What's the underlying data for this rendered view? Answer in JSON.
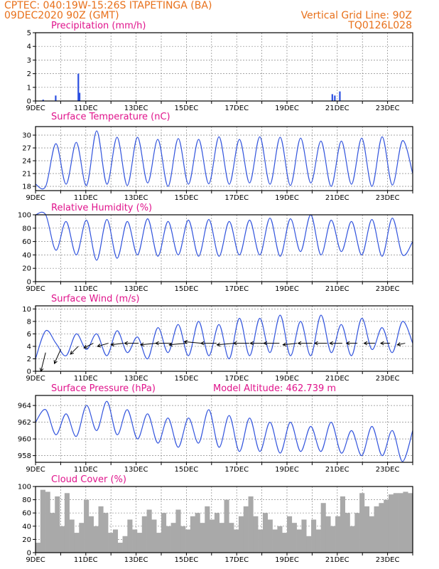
{
  "header": {
    "line1_left": "CPTEC:   040:19W-15:26S   ITAPETINGA (BA)",
    "line2_left": "09DEC2020 90Z (GMT)",
    "line2_right": "Vertical Grid Line: 90Z",
    "line3_right": "TQ0126L028"
  },
  "colors": {
    "line": "#3355dd",
    "bar": "#2b4fe0",
    "cloud": "#a9a9a9",
    "title": "#e0148c",
    "header": "#e8701a"
  },
  "chart_data": [
    {
      "type": "bar",
      "title": "Precipitation (mm/h)",
      "ylim": [
        0,
        5
      ],
      "yticks": [
        0,
        1,
        2,
        3,
        4,
        5
      ],
      "xticks": [
        "9DEC",
        "11DEC",
        "13DEC",
        "15DEC",
        "17DEC",
        "19DEC",
        "21DEC",
        "23DEC"
      ],
      "bars": [
        [
          0.3,
          0.1
        ],
        [
          0.8,
          0.4
        ],
        [
          1.7,
          2.0
        ],
        [
          1.75,
          0.6
        ],
        [
          11.8,
          0.5
        ],
        [
          11.9,
          0.4
        ],
        [
          12.1,
          0.7
        ]
      ]
    },
    {
      "type": "line",
      "title": "Surface Temperature (nC)",
      "ylim": [
        17,
        32
      ],
      "yticks": [
        18,
        21,
        24,
        27,
        30
      ],
      "xticks": [
        "9DEC",
        "11DEC",
        "13DEC",
        "15DEC",
        "17DEC",
        "19DEC",
        "21DEC",
        "23DEC"
      ],
      "series": [
        {
          "values": [
            18.5,
            18,
            28,
            18.5,
            28.3,
            18.2,
            31.0,
            18.5,
            29.5,
            18.2,
            29.5,
            18.8,
            29.0,
            18.0,
            29.2,
            18.5,
            29.0,
            18.6,
            29.6,
            18.5,
            29.0,
            18.8,
            29.6,
            18.5,
            29.5,
            18.2,
            29.3,
            18.8,
            28.6,
            18.0,
            28.6,
            18.5,
            29.3,
            18.0,
            29.6,
            18.3,
            28.7,
            21.0
          ]
        }
      ]
    },
    {
      "type": "line",
      "title": "Relative Humidity (%)",
      "ylim": [
        0,
        100
      ],
      "yticks": [
        0,
        20,
        40,
        60,
        80,
        100
      ],
      "xticks": [
        "9DEC",
        "11DEC",
        "13DEC",
        "15DEC",
        "17DEC",
        "19DEC",
        "21DEC",
        "23DEC"
      ],
      "series": [
        {
          "values": [
            100,
            100,
            47,
            90,
            40,
            92,
            32,
            93,
            35,
            90,
            40,
            94,
            38,
            90,
            40,
            92,
            38,
            93,
            38,
            90,
            40,
            92,
            40,
            95,
            38,
            94,
            45,
            100,
            40,
            92,
            45,
            90,
            40,
            93,
            38,
            95,
            40,
            60
          ]
        }
      ]
    },
    {
      "type": "line",
      "title": "Surface Wind (m/s)",
      "ylim": [
        0,
        10.5
      ],
      "yticks": [
        0,
        2,
        4,
        6,
        8,
        10
      ],
      "xticks": [
        "9DEC",
        "11DEC",
        "13DEC",
        "15DEC",
        "17DEC",
        "19DEC",
        "21DEC",
        "23DEC"
      ],
      "series": [
        {
          "values": [
            2.0,
            6.5,
            4.5,
            2.5,
            6.0,
            3.5,
            6.0,
            2.5,
            6.5,
            3.0,
            5.5,
            2.0,
            7.0,
            3.0,
            7.5,
            2.5,
            8.0,
            2.5,
            7.5,
            2.0,
            8.5,
            2.5,
            8.5,
            3.0,
            9.0,
            2.5,
            8.0,
            2.5,
            9.0,
            3.0,
            7.5,
            2.5,
            8.5,
            3.5,
            7.0,
            3.0,
            8.0,
            4.5
          ]
        }
      ],
      "arrows": [
        [
          0.4,
          3.0,
          -0.3,
          -1.2
        ],
        [
          1.0,
          3.5,
          -0.4,
          -0.9
        ],
        [
          1.7,
          4.0,
          -0.5,
          -0.5
        ],
        [
          2.3,
          4.5,
          -0.6,
          -0.3
        ],
        [
          2.9,
          4.5,
          -0.7,
          -0.2
        ],
        [
          3.5,
          4.5,
          -0.8,
          -0.1
        ],
        [
          4.1,
          4.5,
          -0.9,
          0.0
        ],
        [
          4.8,
          4.5,
          -1.0,
          -0.1
        ],
        [
          5.4,
          4.5,
          -1.0,
          0.0
        ],
        [
          6.0,
          4.5,
          -1.1,
          -0.1
        ],
        [
          6.6,
          4.5,
          -1.1,
          0.1
        ],
        [
          7.2,
          4.5,
          -1.0,
          0.0
        ],
        [
          7.9,
          4.5,
          -1.1,
          -0.1
        ],
        [
          8.5,
          4.5,
          -1.0,
          0.0
        ],
        [
          9.1,
          4.5,
          -0.9,
          0.0
        ],
        [
          9.7,
          4.5,
          -1.0,
          0.0
        ],
        [
          10.4,
          4.5,
          -0.9,
          -0.1
        ],
        [
          11.0,
          4.5,
          -0.9,
          0.0
        ],
        [
          11.6,
          4.5,
          -0.8,
          0.0
        ],
        [
          12.2,
          4.5,
          -0.8,
          0.0
        ],
        [
          12.8,
          4.5,
          -0.7,
          0.0
        ],
        [
          13.5,
          4.5,
          -0.7,
          0.0
        ],
        [
          14.1,
          4.5,
          -0.6,
          0.0
        ],
        [
          14.7,
          4.5,
          -0.5,
          -0.1
        ]
      ]
    },
    {
      "type": "line",
      "title": "Surface Pressure (hPa)",
      "subtitle": "Model Altitude: 462.739 m",
      "ylim": [
        957.2,
        965.2
      ],
      "yticks": [
        958,
        960,
        962,
        964
      ],
      "xticks": [
        "9DEC",
        "11DEC",
        "13DEC",
        "15DEC",
        "17DEC",
        "19DEC",
        "21DEC",
        "23DEC"
      ],
      "series": [
        {
          "values": [
            962.0,
            963.5,
            960.5,
            963.0,
            960.3,
            964.0,
            961.0,
            964.5,
            960.5,
            963.5,
            960.0,
            963.0,
            959.5,
            962.5,
            959.0,
            962.5,
            959.5,
            963.5,
            959.0,
            962.8,
            958.5,
            962.5,
            958.5,
            962.0,
            958.3,
            962.0,
            958.5,
            961.5,
            958.5,
            962.0,
            958.3,
            961.0,
            958.0,
            961.5,
            958.0,
            961.0,
            957.3,
            961.0
          ]
        }
      ]
    },
    {
      "type": "area",
      "title": "Cloud Cover (%)",
      "ylim": [
        0,
        100
      ],
      "yticks": [
        0,
        20,
        40,
        60,
        80,
        100
      ],
      "xticks": [
        "9DEC",
        "11DEC",
        "13DEC",
        "15DEC",
        "17DEC",
        "19DEC",
        "21DEC",
        "23DEC"
      ],
      "series": [
        {
          "values": [
            15,
            95,
            92,
            60,
            85,
            40,
            90,
            50,
            30,
            45,
            80,
            55,
            40,
            70,
            60,
            30,
            35,
            15,
            25,
            50,
            35,
            30,
            55,
            65,
            50,
            30,
            60,
            40,
            45,
            65,
            40,
            35,
            55,
            60,
            45,
            70,
            50,
            60,
            45,
            80,
            45,
            35,
            55,
            70,
            85,
            55,
            35,
            60,
            50,
            35,
            40,
            30,
            55,
            45,
            35,
            50,
            25,
            50,
            35,
            75,
            55,
            40,
            55,
            85,
            60,
            40,
            60,
            90,
            70,
            55,
            70,
            75,
            80,
            88,
            90,
            90,
            92,
            90
          ]
        }
      ]
    }
  ]
}
